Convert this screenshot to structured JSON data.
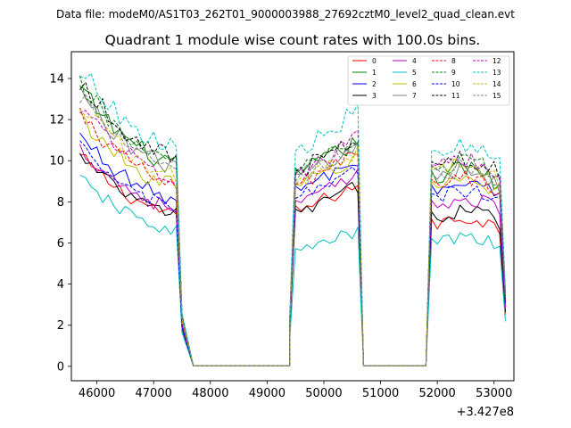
{
  "chart_data": {
    "type": "line",
    "suptitle": "Data file: modeM0/AS1T03_262T01_9000003988_27692cztM0_level2_quad_clean.evt",
    "title": "Quadrant 1 module wise count rates with 100.0s bins.",
    "xlabel": "",
    "ylabel": "",
    "x_offset_label": "+3.427e8",
    "xlim": [
      45550,
      53350
    ],
    "ylim": [
      -0.7,
      15.3
    ],
    "xticks": [
      46000,
      47000,
      48000,
      49000,
      50000,
      51000,
      52000,
      53000
    ],
    "yticks": [
      0,
      2,
      4,
      6,
      8,
      10,
      12,
      14
    ],
    "legend_location": "upper-right",
    "legend_columns": 4,
    "segments": [
      {
        "x_start": 45700,
        "x_end": 47400,
        "step": 100
      },
      {
        "x_start": 49500,
        "x_end": 50600,
        "step": 100
      },
      {
        "x_start": 51900,
        "x_end": 53100,
        "step": 100
      }
    ],
    "drop_x": {
      "seg0": 47500,
      "seg1": 50700,
      "seg2": 53200
    },
    "zero_x": [
      47700,
      49400,
      51800
    ],
    "series": [
      {
        "name": "0",
        "color": "#ff0000",
        "style": "solid",
        "levels": [
          10.2,
          8.5,
          7.6
        ]
      },
      {
        "name": "1",
        "color": "#008000",
        "style": "solid",
        "levels": [
          13.5,
          10.5,
          10.1
        ]
      },
      {
        "name": "2",
        "color": "#0000ff",
        "style": "solid",
        "levels": [
          11.2,
          9.6,
          9.4
        ]
      },
      {
        "name": "3",
        "color": "#000000",
        "style": "solid",
        "levels": [
          10.2,
          8.4,
          8.0
        ]
      },
      {
        "name": "4",
        "color": "#bf00bf",
        "style": "solid",
        "levels": [
          10.6,
          8.9,
          8.6
        ]
      },
      {
        "name": "5",
        "color": "#00bfbf",
        "style": "solid",
        "levels": [
          9.1,
          6.3,
          6.6
        ]
      },
      {
        "name": "6",
        "color": "#bfbf00",
        "style": "solid",
        "levels": [
          12.1,
          9.8,
          9.6
        ]
      },
      {
        "name": "7",
        "color": "#808080",
        "style": "solid",
        "levels": [
          13.3,
          10.4,
          10.0
        ]
      },
      {
        "name": "8",
        "color": "#ff0000",
        "style": "dashed",
        "levels": [
          12.2,
          9.9,
          9.7
        ]
      },
      {
        "name": "9",
        "color": "#008000",
        "style": "dashed",
        "levels": [
          13.7,
          10.6,
          10.4
        ]
      },
      {
        "name": "10",
        "color": "#0000ff",
        "style": "dashed",
        "levels": [
          10.6,
          9.2,
          9.0
        ]
      },
      {
        "name": "11",
        "color": "#000000",
        "style": "dashed",
        "levels": [
          13.9,
          10.7,
          10.6
        ]
      },
      {
        "name": "12",
        "color": "#bf00bf",
        "style": "dashed",
        "levels": [
          12.7,
          10.6,
          10.5
        ]
      },
      {
        "name": "13",
        "color": "#00bfbf",
        "style": "dashed",
        "levels": [
          14.5,
          11.9,
          11.2
        ]
      },
      {
        "name": "14",
        "color": "#bfbf00",
        "style": "dashed",
        "levels": [
          12.8,
          10.1,
          10.3
        ]
      },
      {
        "name": "15",
        "color": "#808080",
        "style": "dashed",
        "levels": [
          13.1,
          10.3,
          10.2
        ]
      }
    ]
  }
}
